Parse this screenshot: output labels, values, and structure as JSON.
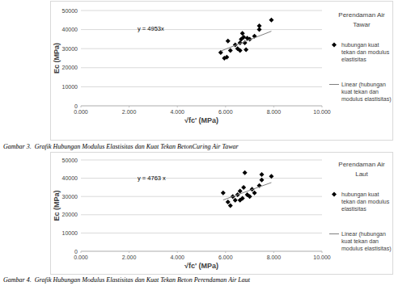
{
  "chart_data": [
    {
      "type": "scatter",
      "title": "Gambar 3.  Grafik Hubungan Modulus Elastisitas dan Kuat Tekan BetonCuring Air Tawar",
      "legend_title": "Perendaman Air Tawar",
      "x_label": "√fc' (MPa)",
      "y_label": "Ec (MPa)",
      "annotations": [
        "y = 4953x"
      ],
      "xlim": [
        0,
        10
      ],
      "ylim": [
        0,
        50000
      ],
      "xticks": [
        {
          "value": 0,
          "label": "0.000"
        },
        {
          "value": 2,
          "label": "2.000"
        },
        {
          "value": 4,
          "label": "4.000"
        },
        {
          "value": 6,
          "label": "6.000"
        },
        {
          "value": 8,
          "label": "8.000"
        },
        {
          "value": 10,
          "label": "10.000"
        }
      ],
      "yticks": [
        0,
        10000,
        20000,
        30000,
        40000,
        50000
      ],
      "grid": true,
      "legend": "right",
      "series": [
        {
          "name": "hubungan kuat tekan dan modulus elastisitas",
          "type": "scatter",
          "marker": "diamond",
          "color": "#000000",
          "x": [
            5.8,
            5.95,
            6.05,
            6.1,
            6.2,
            6.4,
            6.5,
            6.6,
            6.6,
            6.65,
            6.7,
            6.75,
            6.8,
            6.85,
            6.9,
            7.0,
            7.2,
            7.4,
            7.4,
            7.9
          ],
          "values": [
            28000,
            25000,
            25500,
            34000,
            29000,
            32000,
            30000,
            33000,
            29000,
            35000,
            38000,
            36000,
            33000,
            29500,
            35500,
            35000,
            36500,
            42000,
            40000,
            45000
          ]
        },
        {
          "name": "Linear (hubungan kuat tekan dan modulus elastisitas)",
          "type": "line",
          "line_style": "solid",
          "color": "#7f7f7f",
          "x": [
            5.8,
            7.9
          ],
          "values": [
            28727,
            39129
          ]
        }
      ]
    },
    {
      "type": "scatter",
      "title": "Gambar 4.  Grafik Hubungan Modulus Elastisitas dan Kuat Tekan Beton Perendaman Air Laut",
      "legend_title": "Perendaman Air Laut",
      "x_label": "√fc' (MPa)",
      "y_label": "Ec (MPa)",
      "annotations": [
        "y = 4763 x"
      ],
      "xlim": [
        0,
        10
      ],
      "ylim": [
        0,
        50000
      ],
      "xticks": [
        {
          "value": 0,
          "label": "0.000"
        },
        {
          "value": 2,
          "label": "2.000"
        },
        {
          "value": 4,
          "label": "4.000"
        },
        {
          "value": 6,
          "label": "6.000"
        },
        {
          "value": 8,
          "label": "8.000"
        },
        {
          "value": 10,
          "label": "10.000"
        }
      ],
      "yticks": [
        0,
        10000,
        20000,
        30000,
        40000,
        50000
      ],
      "grid": true,
      "legend": "right",
      "series": [
        {
          "name": "hubungan kuat tekan dan modulus elastisitas",
          "type": "scatter",
          "marker": "diamond",
          "color": "#000000",
          "x": [
            5.9,
            6.1,
            6.2,
            6.3,
            6.4,
            6.5,
            6.6,
            6.6,
            6.7,
            6.75,
            6.8,
            6.9,
            7.0,
            7.1,
            7.2,
            7.4,
            7.5,
            7.5,
            7.9
          ],
          "values": [
            32000,
            27000,
            25000,
            30000,
            28000,
            31000,
            33000,
            28000,
            29000,
            35000,
            43000,
            31000,
            30000,
            34000,
            32000,
            36000,
            42000,
            39000,
            41000
          ]
        },
        {
          "name": "Linear (hubungan kuat tekan dan modulus elastisitas)",
          "type": "line",
          "line_style": "solid",
          "color": "#7f7f7f",
          "x": [
            5.9,
            7.9
          ],
          "values": [
            28102,
            37628
          ]
        }
      ]
    }
  ]
}
